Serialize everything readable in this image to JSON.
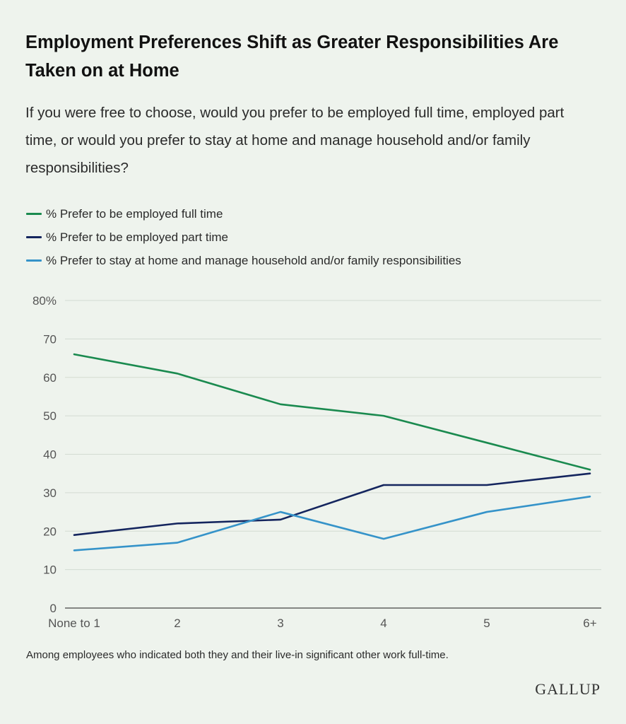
{
  "title": "Employment Preferences Shift as Greater Responsibilities Are Taken on at Home",
  "subtitle": "If you were free to choose, would you prefer to be employed full time, employed part time, or would you prefer to stay at home and manage household and/or family responsibilities?",
  "footnote": "Among employees who indicated both they and their live-in significant other work full-time.",
  "logo": "GALLUP",
  "chart_data": {
    "type": "line",
    "x": [
      "None to 1",
      "2",
      "3",
      "4",
      "5",
      "6+"
    ],
    "ylim": [
      0,
      80
    ],
    "yticks": [
      0,
      10,
      20,
      30,
      40,
      50,
      60,
      70,
      80
    ],
    "ytick_labels": [
      "0",
      "10",
      "20",
      "30",
      "40",
      "50",
      "60",
      "70",
      "80%"
    ],
    "grid": true,
    "legend_position": "top-left",
    "series": [
      {
        "name": "% Prefer to be employed full time",
        "color": "#1a8a4f",
        "values": [
          66,
          61,
          53,
          50,
          43,
          36
        ]
      },
      {
        "name": "% Prefer to be employed part time",
        "color": "#14255e",
        "values": [
          19,
          22,
          23,
          32,
          32,
          35
        ]
      },
      {
        "name": "% Prefer to stay at home and manage household and/or family responsibilities",
        "color": "#3593c9",
        "values": [
          15,
          17,
          25,
          18,
          25,
          29
        ]
      }
    ]
  }
}
